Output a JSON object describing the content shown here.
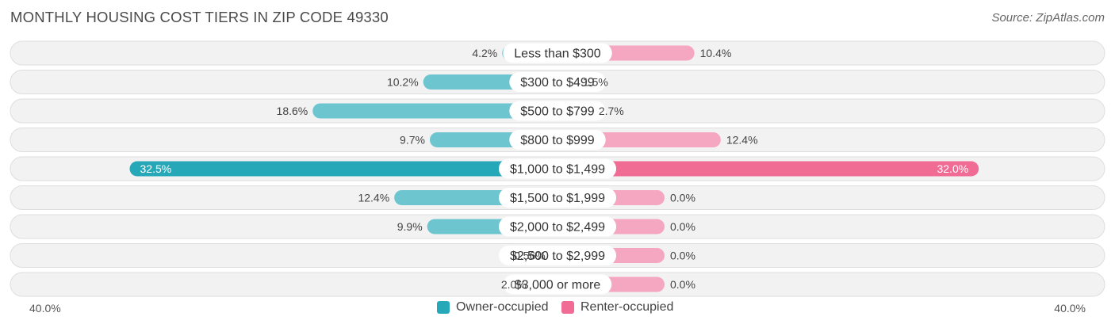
{
  "header": {
    "title": "MONTHLY HOUSING COST TIERS IN ZIP CODE 49330",
    "source": "Source: ZipAtlas.com"
  },
  "axis": {
    "left_label": "40.0%",
    "right_label": "40.0%"
  },
  "legend": {
    "owner_label": "Owner-occupied",
    "renter_label": "Renter-occupied"
  },
  "colors": {
    "owner": "#6cc5cf",
    "owner_strong": "#27a8b8",
    "renter": "#f5a6c0",
    "renter_strong": "#f06c95",
    "row_bg": "#f2f2f2",
    "row_border": "#dedede"
  },
  "chart_data": {
    "type": "bar",
    "orientation": "diverging-horizontal",
    "categories": [
      "Less than $300",
      "$300 to $499",
      "$500 to $799",
      "$800 to $999",
      "$1,000 to $1,499",
      "$1,500 to $1,999",
      "$2,000 to $2,499",
      "$2,500 to $2,999",
      "$3,000 or more"
    ],
    "series": [
      {
        "name": "Owner-occupied",
        "values": [
          4.2,
          10.2,
          18.6,
          9.7,
          32.5,
          12.4,
          9.9,
          0.56,
          2.0
        ],
        "labels": [
          "4.2%",
          "10.2%",
          "18.6%",
          "9.7%",
          "32.5%",
          "12.4%",
          "9.9%",
          "0.56%",
          "2.0%"
        ]
      },
      {
        "name": "Renter-occupied",
        "values": [
          10.4,
          1.5,
          2.7,
          12.4,
          32.0,
          0.0,
          0.0,
          0.0,
          0.0
        ],
        "labels": [
          "10.4%",
          "1.5%",
          "2.7%",
          "12.4%",
          "32.0%",
          "0.0%",
          "0.0%",
          "0.0%",
          "0.0%"
        ]
      }
    ],
    "xlim": [
      -40,
      40
    ],
    "legend_position": "bottom-center",
    "title": "MONTHLY HOUSING COST TIERS IN ZIP CODE 49330"
  }
}
